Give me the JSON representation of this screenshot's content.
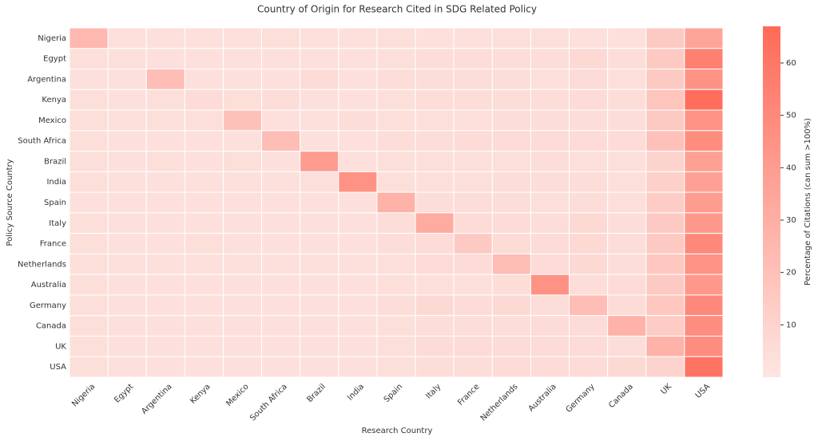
{
  "chart_data": {
    "type": "heatmap",
    "title": "Country of Origin for Research Cited in SDG Related Policy",
    "x_label": "Research Country",
    "y_label": "Policy Source Country",
    "colorbar_label": "Percentage of Citations (can sum >100%)",
    "x_categories": [
      "Nigeria",
      "Egypt",
      "Argentina",
      "Kenya",
      "Mexico",
      "South Africa",
      "Brazil",
      "India",
      "Spain",
      "Italy",
      "France",
      "Netherlands",
      "Australia",
      "Germany",
      "Canada",
      "UK",
      "USA"
    ],
    "y_categories": [
      "Nigeria",
      "Egypt",
      "Argentina",
      "Kenya",
      "Mexico",
      "South Africa",
      "Brazil",
      "India",
      "Spain",
      "Italy",
      "France",
      "Netherlands",
      "Australia",
      "Germany",
      "Canada",
      "UK",
      "USA"
    ],
    "values": [
      [
        25,
        3,
        3,
        3,
        3,
        4,
        3,
        3,
        4,
        3,
        3,
        4,
        4,
        3,
        3,
        15,
        35
      ],
      [
        4,
        4,
        3,
        3,
        3,
        3,
        3,
        3,
        4,
        5,
        5,
        5,
        5,
        7,
        5,
        15,
        55
      ],
      [
        3,
        3,
        22,
        3,
        3,
        3,
        6,
        3,
        5,
        5,
        5,
        5,
        4,
        6,
        4,
        15,
        45
      ],
      [
        4,
        3,
        4,
        6,
        4,
        5,
        3,
        3,
        4,
        5,
        5,
        5,
        5,
        6,
        5,
        18,
        65
      ],
      [
        4,
        3,
        4,
        4,
        20,
        3,
        3,
        5,
        4,
        4,
        4,
        5,
        5,
        5,
        5,
        15,
        45
      ],
      [
        4,
        3,
        3,
        3,
        3,
        22,
        3,
        3,
        5,
        5,
        6,
        6,
        6,
        6,
        6,
        20,
        48
      ],
      [
        4,
        3,
        4,
        3,
        4,
        3,
        40,
        3,
        4,
        4,
        4,
        4,
        5,
        4,
        4,
        10,
        38
      ],
      [
        4,
        3,
        3,
        3,
        3,
        3,
        4,
        45,
        4,
        4,
        4,
        5,
        5,
        5,
        4,
        12,
        38
      ],
      [
        3,
        3,
        3,
        3,
        3,
        3,
        3,
        3,
        28,
        5,
        5,
        5,
        4,
        5,
        4,
        14,
        40
      ],
      [
        4,
        3,
        3,
        3,
        3,
        3,
        3,
        3,
        5,
        32,
        6,
        6,
        5,
        7,
        5,
        15,
        42
      ],
      [
        4,
        3,
        3,
        4,
        3,
        3,
        3,
        3,
        5,
        6,
        15,
        6,
        6,
        7,
        5,
        15,
        50
      ],
      [
        4,
        3,
        3,
        3,
        3,
        3,
        3,
        3,
        4,
        6,
        6,
        22,
        6,
        7,
        5,
        17,
        45
      ],
      [
        4,
        3,
        3,
        3,
        3,
        3,
        3,
        3,
        4,
        4,
        4,
        5,
        45,
        5,
        6,
        15,
        42
      ],
      [
        4,
        3,
        3,
        3,
        3,
        3,
        3,
        3,
        5,
        7,
        6,
        7,
        5,
        22,
        6,
        17,
        50
      ],
      [
        4,
        3,
        3,
        3,
        3,
        3,
        3,
        3,
        4,
        5,
        5,
        5,
        6,
        6,
        28,
        14,
        48
      ],
      [
        4,
        3,
        3,
        3,
        3,
        3,
        3,
        3,
        4,
        6,
        6,
        6,
        6,
        6,
        5,
        28,
        48
      ],
      [
        4,
        3,
        3,
        3,
        3,
        3,
        3,
        3,
        4,
        5,
        5,
        6,
        6,
        6,
        7,
        10,
        62
      ]
    ],
    "colors": [
      "#fde6e2",
      "#ff6a58"
    ],
    "clim": [
      0,
      67
    ],
    "cticks": [
      10,
      20,
      30,
      40,
      50,
      60
    ]
  }
}
